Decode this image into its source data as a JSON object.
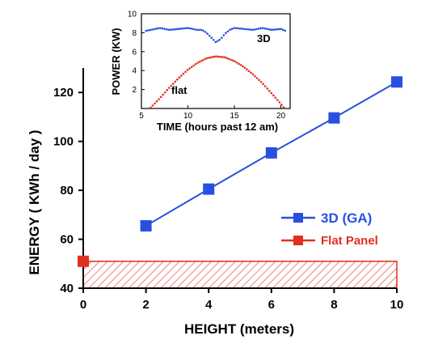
{
  "colors": {
    "series_3d": "#2850e0",
    "series_flat": "#e03020",
    "axis": "#000000"
  },
  "chart_data": [
    {
      "type": "line",
      "title": "",
      "xlabel": "HEIGHT (meters)",
      "ylabel": "ENERGY ( KWh / day )",
      "xlim": [
        0,
        10
      ],
      "ylim": [
        40,
        130
      ],
      "xticks": [
        0,
        2,
        4,
        6,
        8,
        10
      ],
      "yticks": [
        40,
        60,
        80,
        100,
        120
      ],
      "grid": false,
      "legend_position": "right",
      "series": [
        {
          "name": "3D (GA)",
          "color": "#2850e0",
          "marker": "square",
          "x": [
            2,
            4,
            6,
            8,
            10
          ],
          "y": [
            65.5,
            80.5,
            95.3,
            109.6,
            124.3
          ]
        },
        {
          "name": "Flat Panel",
          "color": "#e03020",
          "marker": "square",
          "x": [
            0
          ],
          "y": [
            51
          ]
        }
      ],
      "annotations": [
        {
          "kind": "hatched-band",
          "y_range": [
            40,
            51
          ],
          "x_range": [
            0,
            10
          ],
          "color": "#e03020"
        }
      ]
    },
    {
      "type": "line",
      "title": "",
      "xlabel": "TIME (hours past 12 am)",
      "ylabel": "POWER (KW)",
      "xlim": [
        5,
        21
      ],
      "ylim": [
        0,
        10
      ],
      "xticks": [
        5,
        10,
        15,
        20
      ],
      "yticks": [
        2,
        4,
        6,
        8,
        10
      ],
      "grid": false,
      "series": [
        {
          "name": "3D",
          "color": "#2850e0",
          "marker": "dot",
          "x": [
            5.5,
            6,
            7,
            8,
            9,
            10,
            11,
            11.5,
            12,
            12.5,
            13,
            13.5,
            14,
            14.5,
            15,
            16,
            17,
            18,
            19,
            20,
            20.5
          ],
          "y": [
            8.2,
            8.3,
            8.5,
            8.3,
            8.4,
            8.5,
            8.3,
            8.3,
            8.0,
            7.5,
            7.0,
            7.3,
            7.9,
            8.3,
            8.5,
            8.4,
            8.3,
            8.5,
            8.3,
            8.4,
            8.2
          ]
        },
        {
          "name": "flat",
          "color": "#e03020",
          "marker": "dot",
          "x": [
            6,
            7,
            8,
            9,
            10,
            11,
            12,
            13,
            14,
            15,
            16,
            17,
            18,
            19,
            20,
            20.4
          ],
          "y": [
            0.1,
            1.1,
            2.2,
            3.2,
            4.1,
            4.8,
            5.3,
            5.5,
            5.4,
            5.0,
            4.4,
            3.6,
            2.7,
            1.6,
            0.5,
            0.0
          ]
        }
      ]
    }
  ]
}
